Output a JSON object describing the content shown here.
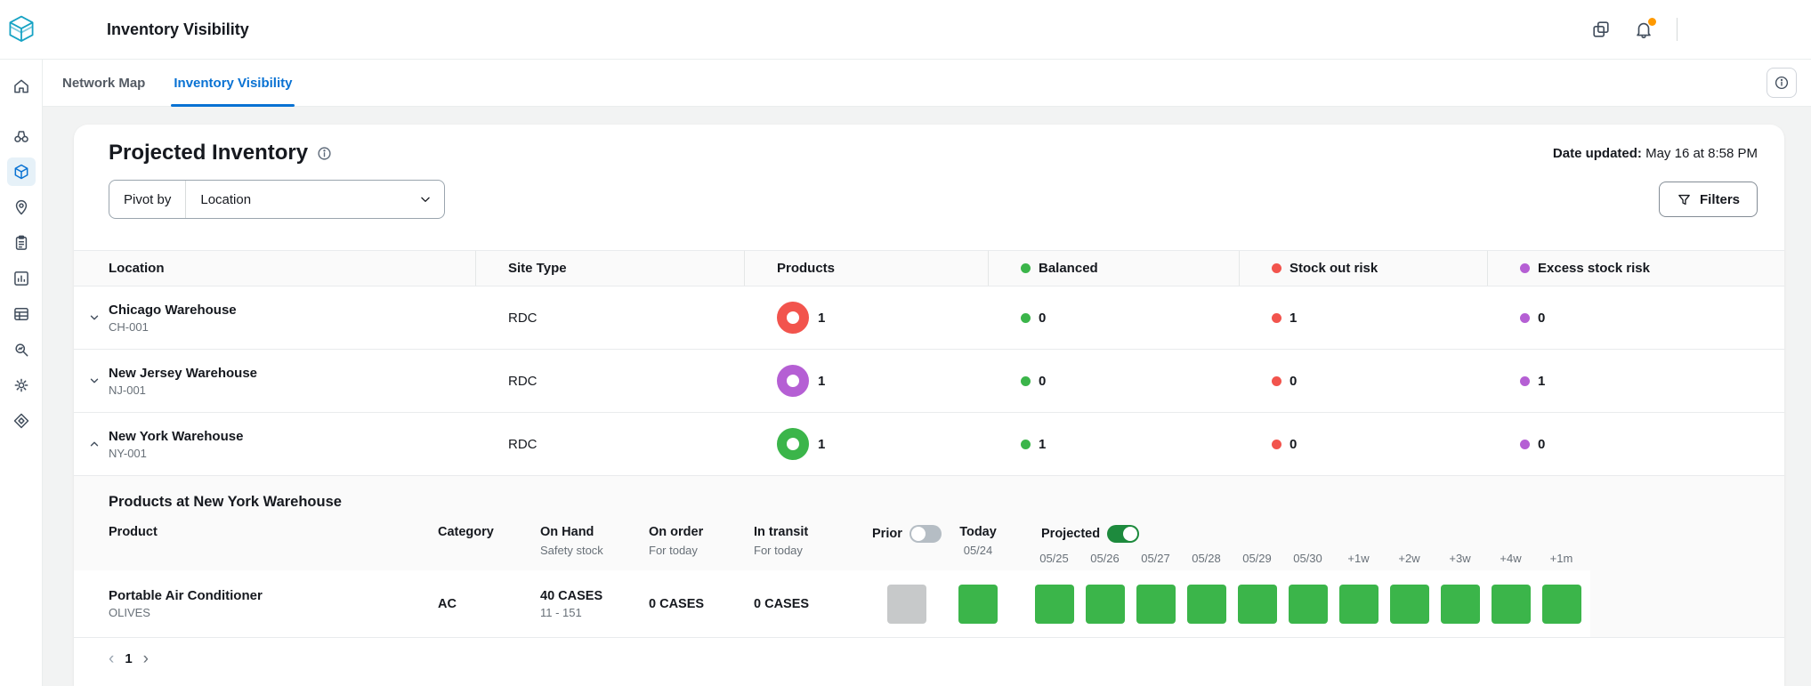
{
  "colors": {
    "accent-blue": "#0972d3",
    "green": "#3bb54a",
    "red": "#f2544d",
    "purple": "#b55fd4",
    "gray-square": "#c7c9ca",
    "toggle-on": "#1d8a3d",
    "badge-orange": "#ff9900",
    "logo-teal": "#17a3c4"
  },
  "topbar": {
    "title": "Inventory Visibility"
  },
  "tabs": [
    {
      "label": "Network Map"
    },
    {
      "label": "Inventory Visibility"
    }
  ],
  "page": {
    "title": "Projected Inventory",
    "date_updated_label": "Date updated:",
    "date_updated_value": "May 16 at 8:58 PM",
    "pivot_label": "Pivot by",
    "pivot_value": "Location",
    "filters_label": "Filters"
  },
  "sidebar": {
    "items": [
      "home-icon",
      "binoculars-icon",
      "package-icon",
      "map-pin-icon",
      "clipboard-icon",
      "bar-chart-icon",
      "table-icon",
      "search-insights-icon",
      "gear-icon",
      "diamond-icon"
    ],
    "selected": "package-icon"
  },
  "table": {
    "columns": {
      "location": "Location",
      "site_type": "Site Type",
      "products": "Products",
      "balanced": "Balanced",
      "stock_out": "Stock out risk",
      "excess": "Excess stock risk"
    },
    "rows": [
      {
        "name": "Chicago Warehouse",
        "code": "CH-001",
        "site_type": "RDC",
        "products": "1",
        "product_color": "#f2544d",
        "balanced": "0",
        "stock_out": "1",
        "excess": "0",
        "expanded": false
      },
      {
        "name": "New Jersey Warehouse",
        "code": "NJ-001",
        "site_type": "RDC",
        "products": "1",
        "product_color": "#b55fd4",
        "balanced": "0",
        "stock_out": "0",
        "excess": "1",
        "expanded": false
      },
      {
        "name": "New York Warehouse",
        "code": "NY-001",
        "site_type": "RDC",
        "products": "1",
        "product_color": "#3bb54a",
        "balanced": "1",
        "stock_out": "0",
        "excess": "0",
        "expanded": true
      }
    ]
  },
  "detail": {
    "title": "Products at New York Warehouse",
    "columns": {
      "product": "Product",
      "category": "Category",
      "on_hand": "On Hand",
      "on_hand_sub": "Safety stock",
      "on_order": "On order",
      "on_order_sub": "For today",
      "in_transit": "In transit",
      "in_transit_sub": "For today",
      "prior": "Prior",
      "today": "Today",
      "today_date": "05/24",
      "projected": "Projected"
    },
    "date_columns": [
      "05/25",
      "05/26",
      "05/27",
      "05/28",
      "05/29",
      "05/30",
      "+1w",
      "+2w",
      "+3w",
      "+4w",
      "+1m"
    ],
    "row": {
      "product": "Portable Air Conditioner",
      "brand": "OLIVES",
      "category": "AC",
      "on_hand": "40 CASES",
      "safety_stock": "11 - 151",
      "on_order": "0 CASES",
      "in_transit": "0 CASES",
      "prior_status": "gray",
      "today_status": "green",
      "projected_status": [
        "green",
        "green",
        "green",
        "green",
        "green",
        "green",
        "green",
        "green",
        "green",
        "green",
        "green"
      ]
    }
  },
  "pagination": {
    "current_page": "1"
  }
}
